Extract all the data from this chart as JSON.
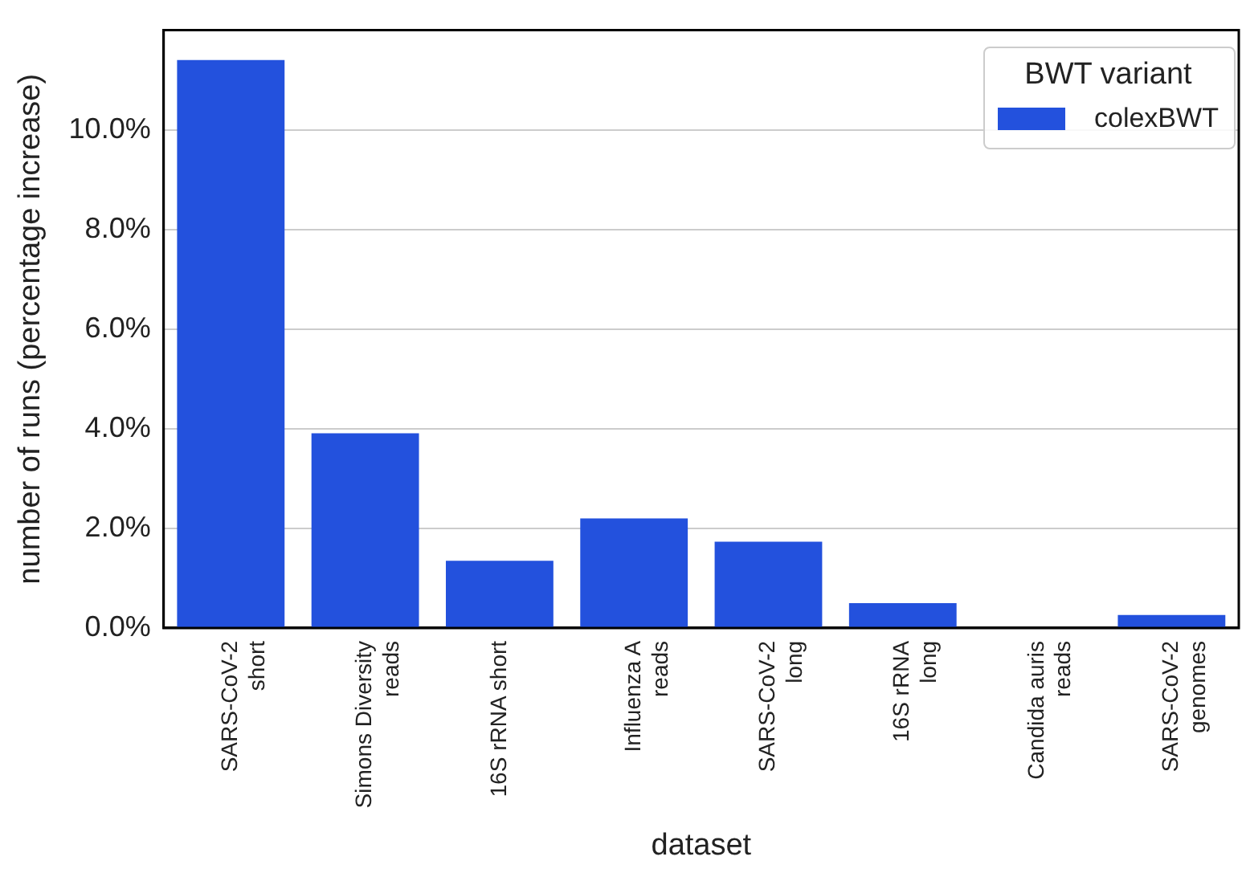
{
  "chart_data": {
    "type": "bar",
    "xlabel": "dataset",
    "ylabel": "number of runs (percentage increase)",
    "legend_title": "BWT variant",
    "categories": [
      "SARS-CoV-2\nshort",
      "Simons Diversity\nreads",
      "16S rRNA short",
      "Influenza A\nreads",
      "SARS-CoV-2\nlong",
      "16S rRNA\nlong",
      "Candida auris\nreads",
      "SARS-CoV-2\ngenomes"
    ],
    "series": [
      {
        "name": "colexBWT",
        "color": "#2351dd",
        "values": [
          11.4,
          3.91,
          1.35,
          2.2,
          1.73,
          0.5,
          0,
          0.26
        ]
      }
    ],
    "ylim": [
      0,
      12
    ],
    "yticks": [
      {
        "value": 0,
        "label": "0.0%"
      },
      {
        "value": 2,
        "label": "2.0%"
      },
      {
        "value": 4,
        "label": "4.0%"
      },
      {
        "value": 6,
        "label": "6.0%"
      },
      {
        "value": 8,
        "label": "8.0%"
      },
      {
        "value": 10,
        "label": "10.0%"
      }
    ],
    "grid": "y",
    "legend": "top right"
  }
}
